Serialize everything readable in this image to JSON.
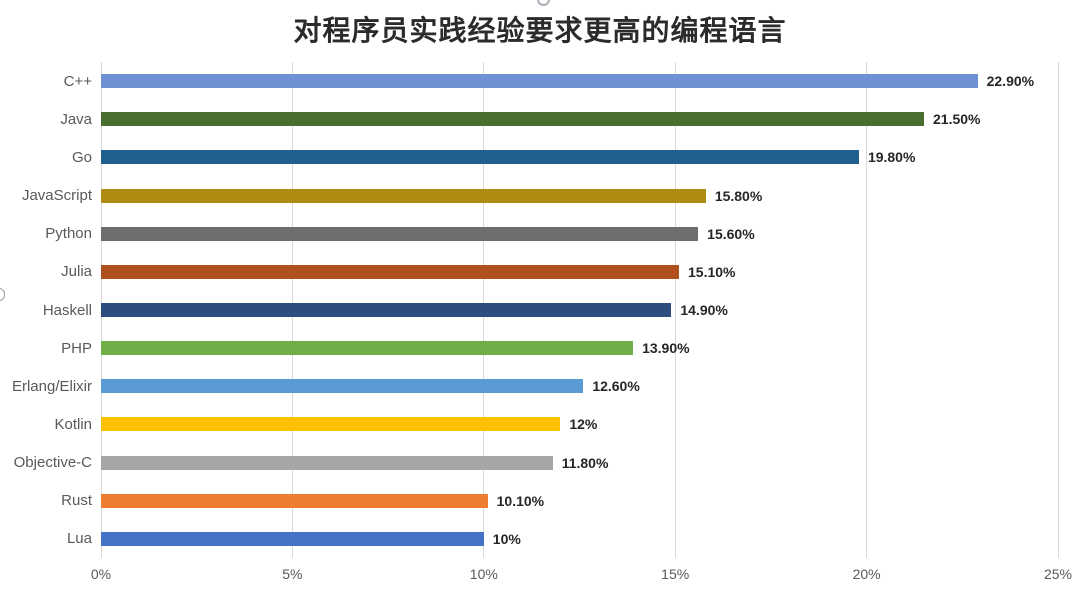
{
  "chart_data": {
    "type": "bar",
    "orientation": "horizontal",
    "title": "对程序员实践经验要求更高的编程语言",
    "categories": [
      "C++",
      "Java",
      "Go",
      "JavaScript",
      "Python",
      "Julia",
      "Haskell",
      "PHP",
      "Erlang/Elixir",
      "Kotlin",
      "Objective-C",
      "Rust",
      "Lua"
    ],
    "values": [
      22.9,
      21.5,
      19.8,
      15.8,
      15.6,
      15.1,
      14.9,
      13.9,
      12.6,
      12,
      11.8,
      10.1,
      10
    ],
    "value_labels": [
      "22.90%",
      "21.50%",
      "19.80%",
      "15.80%",
      "15.60%",
      "15.10%",
      "14.90%",
      "13.90%",
      "12.60%",
      "12%",
      "11.80%",
      "10.10%",
      "10%"
    ],
    "bar_colors": [
      "#6D92D3",
      "#4A6E2F",
      "#1F608F",
      "#AD8B10",
      "#6E6E6E",
      "#B0511D",
      "#2C4D7E",
      "#6FAD47",
      "#5B9BD5",
      "#FFC000",
      "#A6A6A6",
      "#ED7D31",
      "#4472C4"
    ],
    "xlabel": "",
    "ylabel": "",
    "xlim": [
      0,
      25
    ],
    "x_ticks": [
      "0%",
      "5%",
      "10%",
      "15%",
      "20%",
      "25%"
    ],
    "x_tick_values": [
      0,
      5,
      10,
      15,
      20,
      25
    ],
    "grid": true,
    "legend": false,
    "gridline_color": "#d9d9d9",
    "title_color": "#2b2b2b",
    "category_label_color": "#595959",
    "value_label_color": "#262626",
    "tick_label_color": "#595959"
  }
}
